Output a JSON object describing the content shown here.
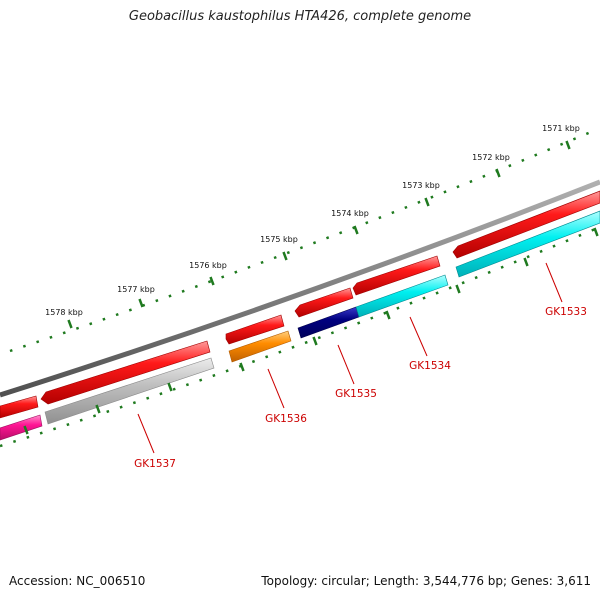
{
  "title": "Geobacillus kaustophilus HTA426, complete genome",
  "footer": {
    "accession": "Accession: NC_006510",
    "topology": "Topology: circular; Length: 3,544,776 bp; Genes: 3,611"
  },
  "scale_labels": [
    "1571 kbp",
    "1572 kbp",
    "1573 kbp",
    "1574 kbp",
    "1575 kbp",
    "1576 kbp",
    "1577 kbp",
    "1578 kbp"
  ],
  "gene_labels": [
    "GK1533",
    "GK1534",
    "GK1535",
    "GK1536",
    "GK1537"
  ],
  "colors": {
    "backbone": "#808080",
    "scale_ticks": "#1f7a1f",
    "forward_strand": "#ff0000",
    "gene_label": "#cc0000",
    "GK1533": "#00f0f0",
    "GK1534": "#00f0f0",
    "GK1535": "#000080",
    "GK1536": "#ff8c00",
    "GK1537": "#c0c0c0",
    "partial_left": "#ff1493"
  }
}
